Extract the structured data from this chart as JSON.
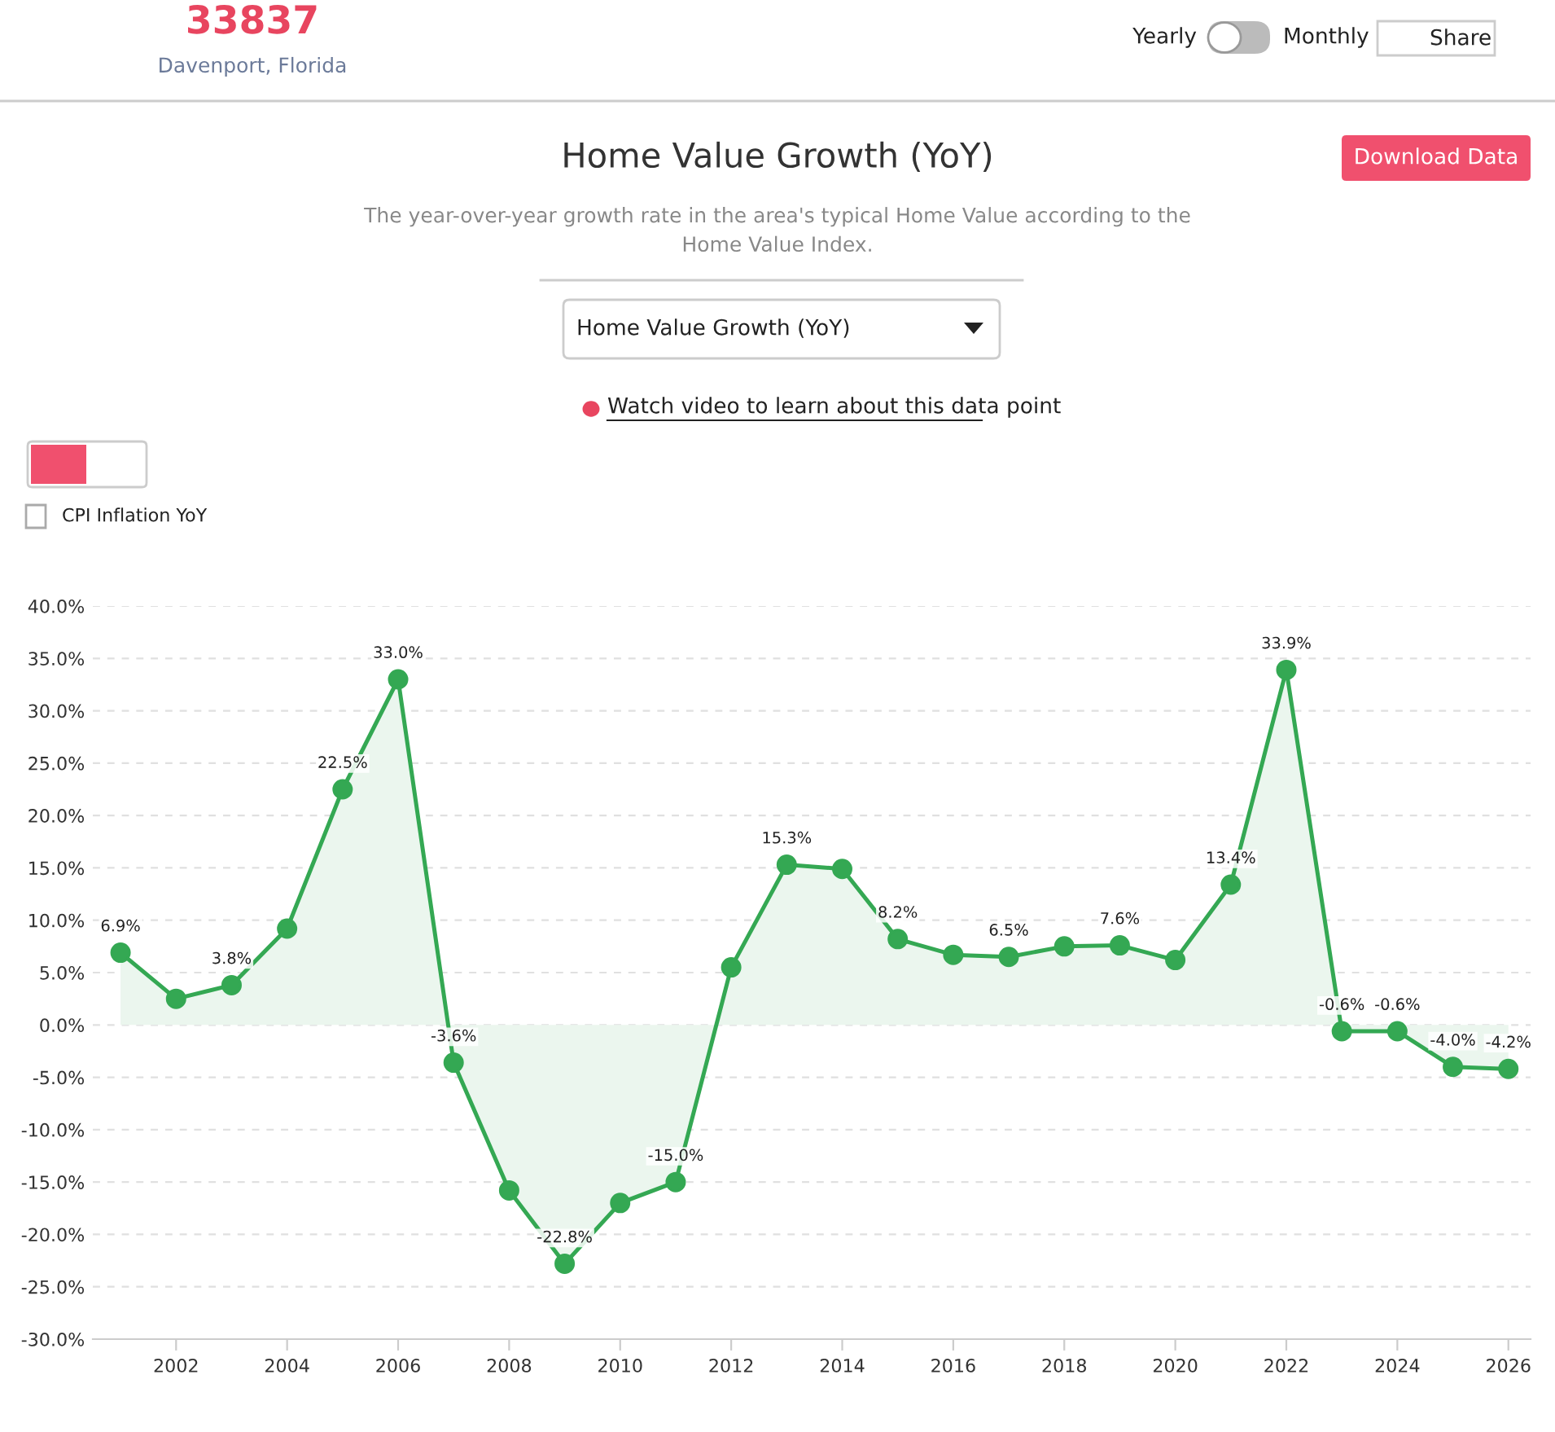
{
  "chart_data": {
    "type": "area",
    "title": "Home Value Growth (YoY)",
    "subtitle": "The year-over-year growth rate in the area's typical Home Value according to the\nHome Value Index.",
    "annotations": [
      "33837",
      "Davenport, Florida",
      "Yearly",
      "Monthly",
      "Share",
      "Download Data",
      "Home Value Growth (YoY)",
      "Watch video to learn about this data point",
      "CPI Inflation YoY"
    ],
    "x": [
      2001,
      2002,
      2003,
      2004,
      2005,
      2006,
      2007,
      2008,
      2009,
      2010,
      2011,
      2012,
      2013,
      2014,
      2015,
      2016,
      2017,
      2018,
      2019,
      2020,
      2021,
      2022,
      2023,
      2024,
      2025,
      2026
    ],
    "series": [
      {
        "color": "#34a853",
        "values": [
          6.9,
          2.5,
          3.8,
          9.2,
          22.5,
          33.0,
          -3.6,
          -15.8,
          -22.8,
          -17.0,
          -15.0,
          5.5,
          15.3,
          14.9,
          8.2,
          6.7,
          6.5,
          7.5,
          7.6,
          6.2,
          13.4,
          33.9,
          -0.6,
          -0.6,
          -4.0,
          -4.2
        ],
        "value_labels": [
          "6.9%",
          null,
          "3.8%",
          null,
          "22.5%",
          "33.0%",
          "-3.6%",
          null,
          "-22.8%",
          null,
          "-15.0%",
          null,
          "15.3%",
          null,
          "8.2%",
          null,
          "6.5%",
          null,
          "7.6%",
          null,
          "13.4%",
          "33.9%",
          "-0.6%",
          "-0.6%",
          "-4.0%",
          "-4.2%"
        ]
      }
    ],
    "xlim": [
      2000.5,
      2026.4
    ],
    "xticks": [
      2002,
      2004,
      2006,
      2008,
      2010,
      2012,
      2014,
      2016,
      2018,
      2020,
      2022,
      2024,
      2026
    ],
    "ylim": [
      -30,
      40
    ],
    "yticks": [
      {
        "value": -30,
        "label": "-30.0%"
      },
      {
        "value": -25,
        "label": "-25.0%"
      },
      {
        "value": -20,
        "label": "-20.0%"
      },
      {
        "value": -15,
        "label": "-15.0%"
      },
      {
        "value": -10,
        "label": "-10.0%"
      },
      {
        "value": -5,
        "label": "-5.0%"
      },
      {
        "value": 0,
        "label": "0.0%"
      },
      {
        "value": 5,
        "label": "5.0%"
      },
      {
        "value": 10,
        "label": "10.0%"
      },
      {
        "value": 15,
        "label": "15.0%"
      },
      {
        "value": 20,
        "label": "20.0%"
      },
      {
        "value": 25,
        "label": "25.0%"
      },
      {
        "value": 30,
        "label": "30.0%"
      },
      {
        "value": 35,
        "label": "35.0%"
      },
      {
        "value": 40,
        "label": "40.0%"
      }
    ],
    "grid": "y",
    "marker": "circle",
    "line_style": "solid"
  }
}
